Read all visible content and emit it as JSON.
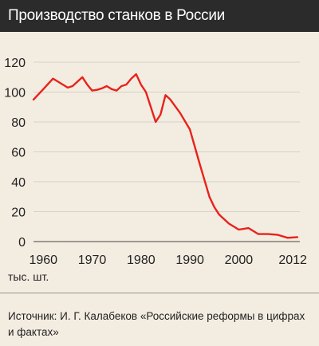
{
  "header": {
    "title": "Производство станков в России"
  },
  "unit_label": "тыс. шт.",
  "source": "Источник: И. Г. Калабеков «Российские реформы в цифрах и фактах»",
  "chart_data": {
    "type": "line",
    "title": "Производство станков в России",
    "xlabel": "",
    "ylabel": "тыс. шт.",
    "xlim": [
      1958,
      2012.5
    ],
    "ylim": [
      0,
      120
    ],
    "x_ticks": [
      1960,
      1970,
      1980,
      1990,
      2000,
      2012
    ],
    "y_ticks": [
      0,
      20,
      40,
      60,
      80,
      100,
      120
    ],
    "grid": "horizontal",
    "line_color": "#e8221b",
    "series": [
      {
        "x": [
          1958,
          1960,
          1962,
          1964,
          1965,
          1966,
          1968,
          1969,
          1970,
          1971,
          1972,
          1973,
          1974,
          1975,
          1976,
          1977,
          1978,
          1979,
          1980,
          1981,
          1983,
          1984,
          1985,
          1986,
          1988,
          1990,
          1992,
          1994,
          1995,
          1996,
          1998,
          2000,
          2002,
          2004,
          2006,
          2008,
          2010,
          2012
        ],
        "y": [
          95,
          102,
          109,
          105,
          103,
          104,
          110,
          105,
          101,
          101.5,
          102.5,
          104,
          102,
          101,
          104,
          105,
          109,
          112,
          105,
          100,
          80,
          85,
          98,
          95,
          86,
          75,
          52,
          30,
          23,
          18,
          12,
          8,
          9,
          5,
          5,
          4.5,
          2.5,
          3
        ]
      }
    ]
  }
}
